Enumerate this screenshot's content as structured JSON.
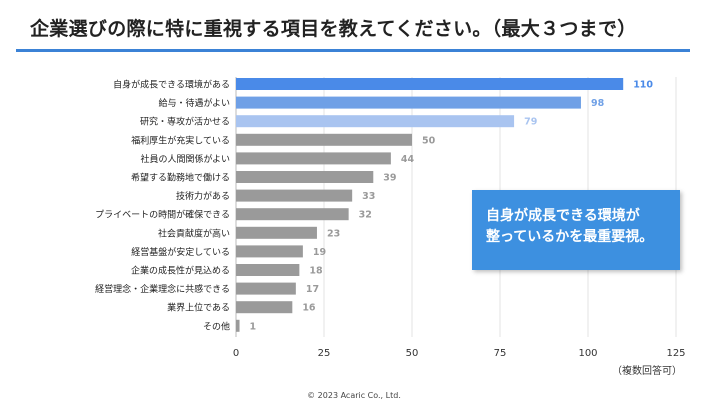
{
  "title": "企業選びの際に特に重視する項目を教えてください。（最大３つまで）",
  "callout": {
    "line1": "自身が成長できる環境が",
    "line2": "整っているかを最重要視。"
  },
  "note": "（複数回答可）",
  "copyright": "© 2023 Acaric Co., Ltd.",
  "colors": {
    "accent": "#3b82d6",
    "top1": "#4a8ae8",
    "top2": "#6fa0e6",
    "top3": "#a9c4f0",
    "rest": "#9a9a9a"
  },
  "chart_data": {
    "type": "bar",
    "orientation": "horizontal",
    "categories": [
      "自身が成長できる環境がある",
      "給与・待遇がよい",
      "研究・専攻が活かせる",
      "福利厚生が充実している",
      "社員の人間関係がよい",
      "希望する勤務地で働ける",
      "技術力がある",
      "プライベートの時間が確保できる",
      "社会貢献度が高い",
      "経営基盤が安定している",
      "企業の成長性が見込める",
      "経営理念・企業理念に共感できる",
      "業界上位である",
      "その他"
    ],
    "values": [
      110,
      98,
      79,
      50,
      44,
      39,
      33,
      32,
      23,
      19,
      18,
      17,
      16,
      1
    ],
    "xlim": [
      0,
      125
    ],
    "xticks": [
      0,
      25,
      50,
      75,
      100,
      125
    ],
    "grid": true
  }
}
